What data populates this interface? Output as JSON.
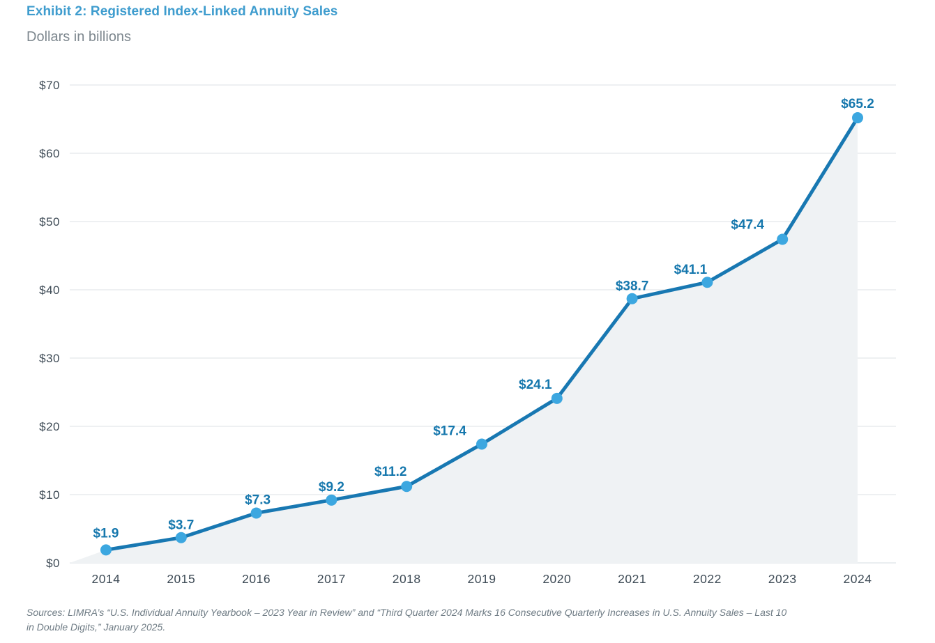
{
  "header": {
    "title": "Exhibit 2: Registered Index-Linked Annuity Sales",
    "subtitle": "Dollars in billions"
  },
  "chart_data": {
    "type": "line",
    "title": "Exhibit 2: Registered Index-Linked Annuity Sales",
    "subtitle": "Dollars in billions",
    "categories": [
      "2014",
      "2015",
      "2016",
      "2017",
      "2018",
      "2019",
      "2020",
      "2021",
      "2022",
      "2023",
      "2024"
    ],
    "values": [
      1.9,
      3.7,
      7.3,
      9.2,
      11.2,
      17.4,
      24.1,
      38.7,
      41.1,
      47.4,
      65.2
    ],
    "point_labels": [
      "$1.9",
      "$3.7",
      "$7.3",
      "$9.2",
      "$11.2",
      "$17.4",
      "$24.1",
      "$38.7",
      "$41.1",
      "$47.4",
      "$65.2"
    ],
    "ylabel": "Dollars in billions",
    "xlabel": "",
    "ylim": [
      0,
      70
    ],
    "ytick_interval": 10,
    "ytick_labels": [
      "$0",
      "$10",
      "$20",
      "$30",
      "$40",
      "$50",
      "$60",
      "$70"
    ],
    "grid": "horizontal",
    "area_fill": true,
    "markers": true,
    "legend_position": "none",
    "colors": {
      "line": "#1878B2",
      "marker": "#3CA7E0",
      "point_label": "#1577AD",
      "area_fill": "#EFF2F4",
      "grid": "#E3E8EB",
      "baseline": "#DEE4E8",
      "axis_text": "#3D4A55",
      "title": "#3E9CCE",
      "subtitle": "#7E888F",
      "source_text": "#6E7B84"
    }
  },
  "footer": {
    "source_lines": [
      "Sources: LIMRA’s “U.S. Individual Annuity Yearbook – 2023 Year in Review” and “Third Quarter 2024 Marks 16 Consecutive Quarterly Increases in U.S. Annuity Sales – Last 10",
      "in Double Digits,” January 2025."
    ]
  }
}
